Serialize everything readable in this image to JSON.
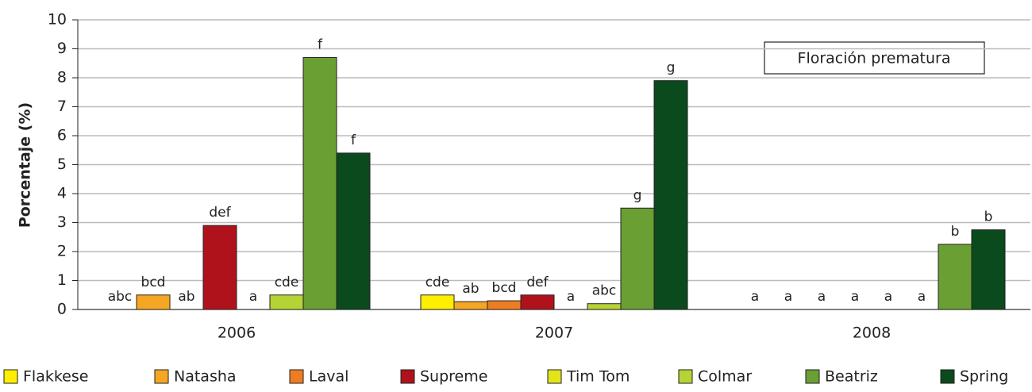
{
  "chart_data": {
    "type": "bar",
    "y_label": "Porcentaje (%)",
    "annotation": "Floración prematura",
    "categories": [
      "2006",
      "2007",
      "2008"
    ],
    "ylim": [
      0,
      10
    ],
    "yticks": [
      0,
      1,
      2,
      3,
      4,
      5,
      6,
      7,
      8,
      9,
      10
    ],
    "grid": true,
    "series": [
      {
        "name": "Flakkese",
        "color": "#ffee00",
        "values": [
          0,
          0.5,
          0
        ],
        "significance": [
          "abc",
          "cde",
          "a"
        ]
      },
      {
        "name": "Natasha",
        "color": "#f5a623",
        "values": [
          0.5,
          0.27,
          0
        ],
        "significance": [
          "bcd",
          "ab",
          "a"
        ]
      },
      {
        "name": "Laval",
        "color": "#ee7d22",
        "values": [
          0,
          0.3,
          0
        ],
        "significance": [
          "ab",
          "bcd",
          "a"
        ]
      },
      {
        "name": "Supreme",
        "color": "#b0121b",
        "values": [
          2.9,
          0.5,
          0
        ],
        "significance": [
          "def",
          "def",
          "a"
        ]
      },
      {
        "name": "Tim Tom",
        "color": "#e3e31c",
        "values": [
          0,
          0,
          0
        ],
        "significance": [
          "a",
          "a",
          "a"
        ]
      },
      {
        "name": "Colmar",
        "color": "#b6d335",
        "values": [
          0.5,
          0.2,
          0
        ],
        "significance": [
          "cde",
          "abc",
          "a"
        ]
      },
      {
        "name": "Beatriz",
        "color": "#6a9f33",
        "values": [
          8.7,
          3.5,
          2.25
        ],
        "significance": [
          "f",
          "g",
          "b"
        ]
      },
      {
        "name": "Spring",
        "color": "#0a4a1c",
        "values": [
          5.4,
          7.9,
          2.75
        ],
        "significance": [
          "f",
          "g",
          "b"
        ]
      }
    ]
  }
}
